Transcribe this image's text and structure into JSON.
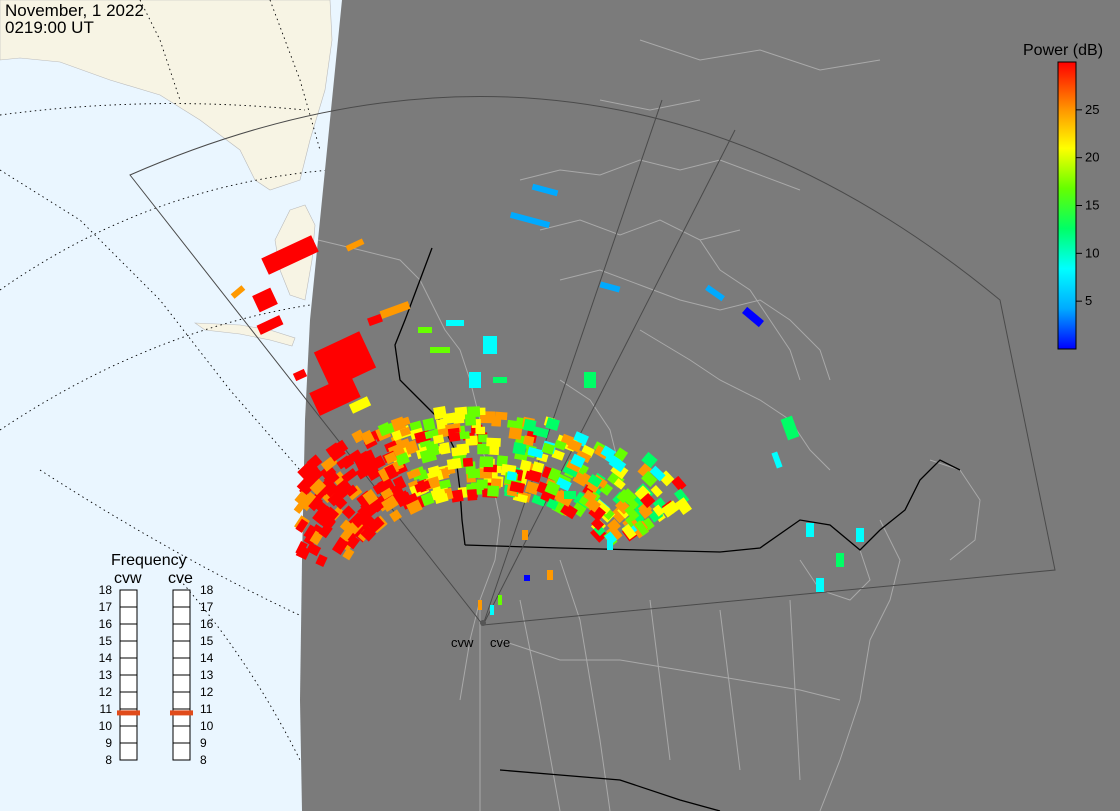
{
  "header": {
    "date": "November, 1 2022",
    "time": "0219:00 UT"
  },
  "colorbar": {
    "title": "Power (dB)",
    "ticks": [
      "5",
      "10",
      "15",
      "20",
      "25"
    ],
    "range": [
      0,
      30
    ],
    "colors": [
      "#0000ff",
      "#00aaff",
      "#00ffff",
      "#00ff66",
      "#66ff00",
      "#ffff00",
      "#ff9900",
      "#ff0000"
    ]
  },
  "radars": [
    {
      "code": "cvw",
      "frequency_mhz": 10.8
    },
    {
      "code": "cve",
      "frequency_mhz": 10.8
    }
  ],
  "frequency_panel": {
    "title": "Frequency",
    "labels": [
      "18",
      "17",
      "16",
      "15",
      "14",
      "13",
      "12",
      "11",
      "10",
      "9",
      "8"
    ],
    "range": [
      8,
      18
    ],
    "marker_color": "#e04a1a"
  },
  "map_colors": {
    "night": "#7b7b7b",
    "day_ocean": "#eaf6ff",
    "day_land": "#f7f4e4",
    "land_lines": "#a9a9a9",
    "borders": "#000000"
  }
}
